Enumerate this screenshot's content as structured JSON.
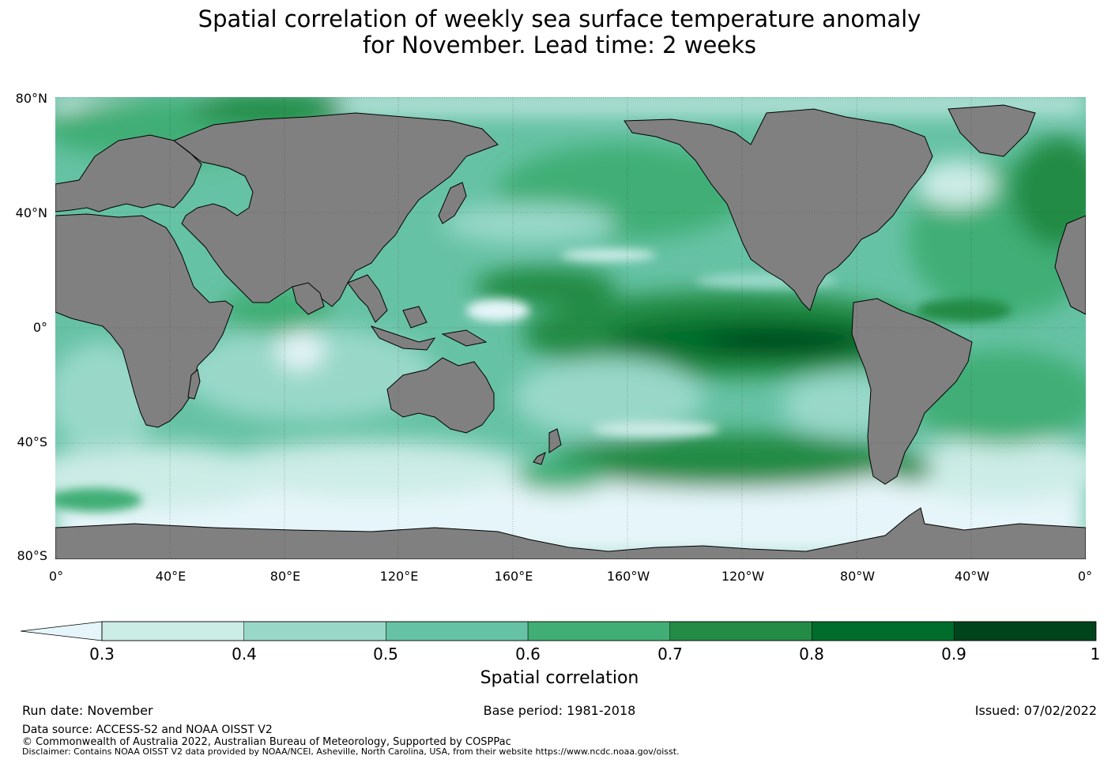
{
  "title_line1": "Spatial correlation of weekly sea surface temperature anomaly",
  "title_line2": "for November. Lead time: 2 weeks",
  "lat_ticks": [
    "80°N",
    "40°N",
    "0°",
    "40°S",
    "80°S"
  ],
  "lon_ticks": [
    "0°",
    "40°E",
    "80°E",
    "120°E",
    "160°E",
    "160°W",
    "120°W",
    "80°W",
    "40°W",
    "0°"
  ],
  "colorbar": {
    "ticks": [
      "0.3",
      "0.4",
      "0.5",
      "0.6",
      "0.7",
      "0.8",
      "0.9",
      "1"
    ],
    "colors": [
      "#e6f5f9",
      "#ccece6",
      "#99d8c9",
      "#66c2a4",
      "#41ae76",
      "#238b45",
      "#006d2c",
      "#00441b"
    ],
    "label": "Spatial correlation"
  },
  "land_color": "#808080",
  "footer": {
    "run_date": "Run date: November",
    "base_period": "Base period: 1981-2018",
    "issued": "Issued: 07/02/2022",
    "data_source": "Data source: ACCESS-S2 and NOAA OISST V2",
    "copyright": "© Commonwealth of Australia 2022, Australian Bureau of Meteorology, Supported by COSPPac",
    "disclaimer": "Disclaimer: Contains NOAA OISST V2 data provided by NOAA/NCEI, Asheville, North Carolina, USA, from their website https://www.ncdc.noaa.gov/oisst."
  }
}
